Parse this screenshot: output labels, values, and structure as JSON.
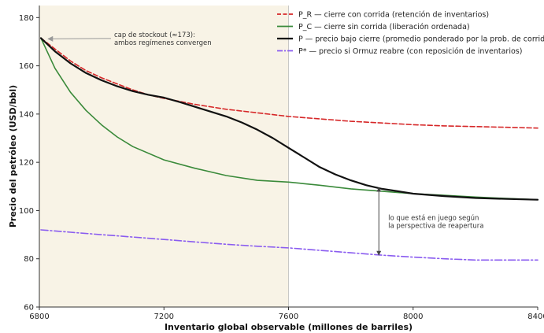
{
  "chart_data": {
    "type": "line",
    "title": "",
    "xlabel": "Inventario global observable (millones de barriles)",
    "ylabel": "Precio del petróleo (USD/bbl)",
    "xlim": [
      6800,
      8400
    ],
    "ylim": [
      60,
      185
    ],
    "xticks": [
      6800,
      7200,
      7600,
      8000,
      8400
    ],
    "yticks": [
      60,
      80,
      100,
      120,
      140,
      160,
      180
    ],
    "legend_position": "top-right",
    "shaded_region": {
      "x_start": 6800,
      "x_end": 7600,
      "color": "#f8f3e6"
    },
    "vertical_line": {
      "x": 7600
    },
    "series": [
      {
        "name": "P_R — cierre con corrida (retención de inventarios)",
        "color": "#d62728",
        "style": "dashed",
        "x": [
          6805,
          6850,
          6900,
          6950,
          7000,
          7050,
          7100,
          7150,
          7200,
          7300,
          7400,
          7500,
          7600,
          7700,
          7800,
          7900,
          8000,
          8100,
          8200,
          8300,
          8400
        ],
        "y": [
          171.5,
          167,
          162,
          158,
          155,
          152.5,
          150,
          148,
          146.5,
          144,
          142,
          140.5,
          139,
          138,
          137,
          136.3,
          135.6,
          135.1,
          134.8,
          134.5,
          134.2
        ]
      },
      {
        "name": "P_C — cierre sin corrida (liberación ordenada)",
        "color": "#3a8a3a",
        "style": "solid",
        "x": [
          6805,
          6850,
          6900,
          6950,
          7000,
          7050,
          7100,
          7200,
          7300,
          7400,
          7500,
          7600,
          7700,
          7800,
          7900,
          8000,
          8100,
          8200,
          8300,
          8400
        ],
        "y": [
          171.5,
          159,
          149,
          141.5,
          135.5,
          130.5,
          126.5,
          121,
          117.5,
          114.5,
          112.5,
          111.8,
          110.5,
          109,
          108,
          107,
          106.3,
          105.6,
          105,
          104.5
        ]
      },
      {
        "name": "P — precio bajo cierre (promedio ponderado por la prob. de corrida)",
        "color": "#111111",
        "style": "solid",
        "x": [
          6805,
          6850,
          6900,
          6950,
          7000,
          7050,
          7100,
          7150,
          7200,
          7250,
          7300,
          7350,
          7400,
          7450,
          7500,
          7550,
          7600,
          7650,
          7700,
          7750,
          7800,
          7850,
          7900,
          7950,
          8000,
          8100,
          8200,
          8300,
          8400
        ],
        "y": [
          171.5,
          166,
          161,
          157,
          154,
          151.5,
          149.5,
          148,
          146.8,
          145,
          143,
          141,
          139,
          136.5,
          133.5,
          130,
          126,
          122,
          118,
          115,
          112.5,
          110.5,
          109,
          108,
          107,
          106,
          105.2,
          104.8,
          104.5
        ]
      },
      {
        "name": "P* — precio si Ormuz reabre (con reposición de inventarios)",
        "color": "#8a5cf0",
        "style": "dashdot",
        "x": [
          6805,
          6900,
          7000,
          7100,
          7200,
          7300,
          7400,
          7500,
          7600,
          7700,
          7800,
          7900,
          8000,
          8100,
          8200,
          8300,
          8400
        ],
        "y": [
          92,
          91,
          90,
          89,
          88,
          87,
          86,
          85.2,
          84.5,
          83.5,
          82.5,
          81.5,
          80.7,
          80,
          79.5,
          79.5,
          79.5
        ]
      }
    ],
    "annotations": [
      {
        "text_lines": [
          "cap de stockout (≈173):",
          "ambos regímenes convergen"
        ],
        "point": [
          6805,
          171.5
        ],
        "text_at": [
          7040,
          172
        ]
      },
      {
        "text_lines": [
          "lo que está en juego según",
          "la perspectiva de reapertura"
        ],
        "arrow_x": 7890,
        "arrow_y": [
          109.5,
          81.5
        ],
        "text_at": [
          7920,
          96
        ]
      }
    ]
  }
}
